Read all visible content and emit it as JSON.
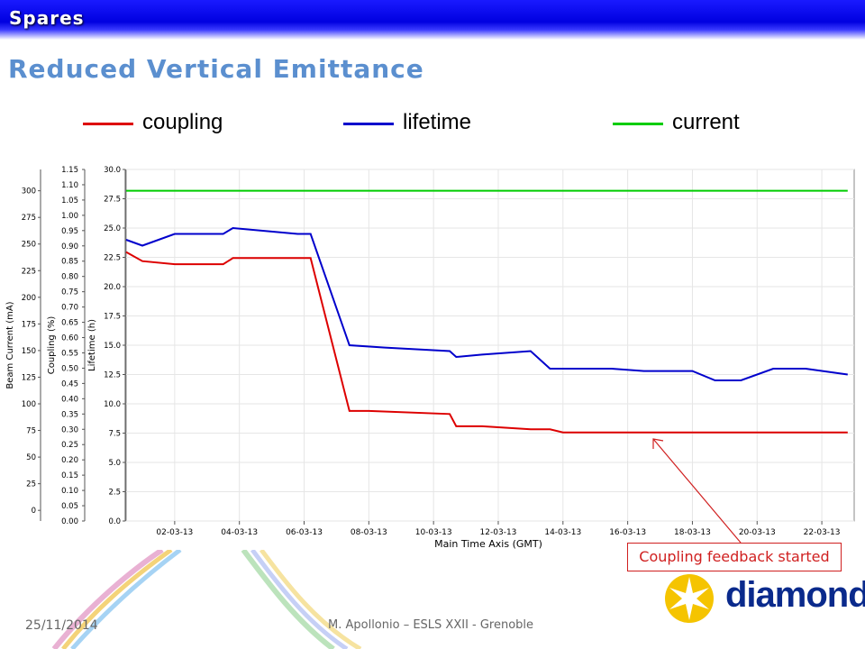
{
  "header": {
    "section": "Spares",
    "title": "Reduced Vertical Emittance"
  },
  "legend": [
    {
      "label": "coupling",
      "color": "#dd0000"
    },
    {
      "label": "lifetime",
      "color": "#0000cc"
    },
    {
      "label": "current",
      "color": "#00cc00"
    }
  ],
  "callout": {
    "text": "Coupling feedback started"
  },
  "footer": {
    "date": "25/11/2014",
    "credit": "M. Apollonio – ESLS XXII - Grenoble"
  },
  "logo": {
    "text": "diamond"
  },
  "chart_data": {
    "type": "line",
    "xlabel": "Main Time Axis (GMT)",
    "x_ticks": [
      "02-03-13",
      "04-03-13",
      "06-03-13",
      "08-03-13",
      "10-03-13",
      "12-03-13",
      "14-03-13",
      "16-03-13",
      "18-03-13",
      "20-03-13",
      "22-03-13"
    ],
    "x_range_days": [
      0,
      22.5
    ],
    "axes": [
      {
        "label": "Beam Current (mA)",
        "ticks": [
          0,
          25,
          50,
          75,
          100,
          125,
          150,
          175,
          200,
          225,
          250,
          275,
          300
        ],
        "range": [
          -10,
          320
        ]
      },
      {
        "label": "Coupling (%)",
        "ticks": [
          "0.00",
          "0.05",
          "0.10",
          "0.15",
          "0.20",
          "0.25",
          "0.30",
          "0.35",
          "0.40",
          "0.45",
          "0.50",
          "0.55",
          "0.60",
          "0.65",
          "0.70",
          "0.75",
          "0.80",
          "0.85",
          "0.90",
          "0.95",
          "1.00",
          "1.05",
          "1.10",
          "1.15"
        ],
        "range": [
          0,
          1.15
        ]
      },
      {
        "label": "Lifetime (h)",
        "ticks": [
          "0.0",
          "2.5",
          "5.0",
          "7.5",
          "10.0",
          "12.5",
          "15.0",
          "17.5",
          "20.0",
          "22.5",
          "25.0",
          "27.5",
          "30.0"
        ],
        "range": [
          0,
          30
        ]
      }
    ],
    "series": [
      {
        "name": "coupling",
        "axis": "Coupling (%)",
        "color": "#dd0000",
        "points": [
          [
            0,
            0.88
          ],
          [
            0.5,
            0.85
          ],
          [
            1.5,
            0.84
          ],
          [
            3,
            0.84
          ],
          [
            3.3,
            0.86
          ],
          [
            5.3,
            0.86
          ],
          [
            5.7,
            0.86
          ],
          [
            6.9,
            0.36
          ],
          [
            7.5,
            0.36
          ],
          [
            10,
            0.35
          ],
          [
            10.2,
            0.31
          ],
          [
            11,
            0.31
          ],
          [
            12.5,
            0.3
          ],
          [
            13.1,
            0.3
          ],
          [
            13.5,
            0.29
          ],
          [
            18,
            0.29
          ],
          [
            22.3,
            0.29
          ]
        ]
      },
      {
        "name": "lifetime",
        "axis": "Lifetime (h)",
        "color": "#0000cc",
        "points": [
          [
            0,
            24
          ],
          [
            0.5,
            23.5
          ],
          [
            1.5,
            24.5
          ],
          [
            3,
            24.5
          ],
          [
            3.3,
            25
          ],
          [
            5.3,
            24.5
          ],
          [
            5.7,
            24.5
          ],
          [
            6.9,
            15
          ],
          [
            8,
            14.8
          ],
          [
            10,
            14.5
          ],
          [
            10.2,
            14
          ],
          [
            11,
            14.2
          ],
          [
            12.5,
            14.5
          ],
          [
            13.1,
            13
          ],
          [
            14,
            13
          ],
          [
            15,
            13
          ],
          [
            16,
            12.8
          ],
          [
            17.5,
            12.8
          ],
          [
            18.2,
            12
          ],
          [
            19,
            12
          ],
          [
            20,
            13
          ],
          [
            21,
            13
          ],
          [
            22.3,
            12.5
          ]
        ]
      },
      {
        "name": "current",
        "axis": "Beam Current (mA)",
        "color": "#00cc00",
        "points": [
          [
            0,
            300
          ],
          [
            5.5,
            300
          ],
          [
            6.8,
            300
          ],
          [
            12.5,
            300
          ],
          [
            13.1,
            300
          ],
          [
            22.3,
            300
          ]
        ]
      }
    ]
  }
}
